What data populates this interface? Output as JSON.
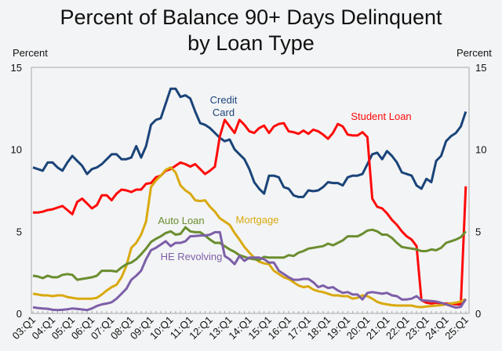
{
  "chart_data": {
    "type": "line",
    "title": "Percent of Balance 90+ Days Delinquent by Loan Type",
    "title_lines": [
      "Percent of Balance 90+ Days Delinquent",
      "by Loan Type"
    ],
    "ylabel_left": "Percent",
    "ylabel_right": "Percent",
    "ylim": [
      0,
      15
    ],
    "yticks": [
      0,
      5,
      10,
      15
    ],
    "xtick_labels": [
      "03:Q1",
      "04:Q1",
      "05:Q1",
      "06:Q1",
      "07:Q1",
      "08:Q1",
      "09:Q1",
      "10:Q1",
      "11:Q1",
      "12:Q1",
      "13:Q1",
      "14:Q1",
      "15:Q1",
      "16:Q1",
      "17:Q1",
      "18:Q1",
      "19:Q1",
      "20:Q1",
      "21:Q1",
      "22:Q1",
      "23:Q1",
      "24:Q1",
      "25:Q1"
    ],
    "x_range": [
      "2003:Q1",
      "2025:Q1"
    ],
    "x_frequency": "quarterly",
    "grid": false,
    "legend": "inline labels",
    "series": [
      {
        "name": "Credit Card",
        "label_lines": [
          "Credit",
          "Card"
        ],
        "color": "#1a4479",
        "values": [
          8.9,
          8.8,
          8.7,
          9.2,
          9.2,
          8.9,
          8.7,
          9.2,
          9.6,
          9.3,
          9.0,
          8.5,
          8.8,
          8.9,
          9.1,
          9.4,
          9.7,
          9.7,
          9.4,
          9.4,
          9.5,
          10.2,
          9.5,
          10.2,
          11.5,
          11.8,
          11.9,
          12.8,
          13.7,
          13.7,
          13.2,
          13.3,
          13.1,
          12.3,
          11.6,
          11.5,
          11.3,
          11.0,
          10.7,
          10.5,
          10.6,
          10.0,
          9.7,
          9.4,
          8.8,
          8.0,
          7.6,
          7.3,
          8.4,
          8.4,
          8.3,
          7.7,
          7.6,
          7.2,
          7.1,
          7.1,
          7.5,
          7.45,
          7.5,
          7.7,
          8.0,
          7.95,
          7.95,
          7.8,
          8.3,
          8.4,
          8.4,
          8.5,
          9.1,
          9.7,
          9.8,
          9.4,
          9.9,
          9.6,
          9.2,
          8.6,
          8.5,
          8.4,
          7.8,
          7.6,
          8.2,
          8.0,
          9.3,
          9.6,
          10.5,
          10.8,
          11.0,
          11.4,
          12.3
        ]
      },
      {
        "name": "Student Loan",
        "label_lines": [
          "Student Loan"
        ],
        "color": "#ff0a0a",
        "values": [
          6.15,
          6.15,
          6.2,
          6.3,
          6.35,
          6.45,
          6.55,
          6.3,
          6.05,
          6.8,
          7.0,
          6.7,
          6.4,
          6.6,
          7.2,
          7.2,
          6.9,
          7.3,
          7.55,
          7.5,
          7.4,
          7.55,
          7.55,
          7.9,
          7.95,
          8.3,
          8.4,
          8.7,
          8.8,
          9.0,
          9.2,
          9.1,
          8.95,
          9.1,
          8.8,
          8.5,
          8.7,
          8.95,
          10.8,
          11.8,
          11.4,
          11.0,
          11.8,
          11.5,
          11.1,
          11.0,
          11.3,
          11.45,
          11.0,
          11.4,
          11.55,
          11.6,
          11.1,
          11.05,
          10.95,
          11.15,
          10.95,
          11.2,
          11.1,
          10.9,
          10.65,
          11.0,
          11.55,
          11.4,
          10.9,
          10.85,
          10.85,
          11.05,
          10.75,
          7.0,
          6.5,
          6.4,
          6.1,
          5.7,
          5.4,
          5.0,
          4.7,
          4.5,
          4.1,
          0.8,
          0.65,
          0.6,
          0.65,
          0.6,
          0.6,
          0.6,
          0.55,
          0.55,
          7.75
        ]
      },
      {
        "name": "Mortgage",
        "label_lines": [
          "Mortgage"
        ],
        "color": "#d9a90e",
        "values": [
          1.2,
          1.15,
          1.1,
          1.1,
          1.05,
          1.1,
          1.1,
          1.0,
          0.95,
          0.9,
          0.9,
          0.9,
          0.9,
          0.95,
          1.15,
          1.4,
          1.6,
          1.75,
          2.2,
          2.9,
          4.0,
          4.3,
          4.8,
          5.6,
          7.7,
          8.1,
          8.4,
          8.75,
          8.9,
          8.6,
          7.8,
          7.5,
          7.3,
          6.9,
          6.85,
          6.9,
          6.5,
          6.2,
          5.8,
          5.6,
          5.4,
          4.9,
          4.5,
          4.05,
          3.7,
          3.4,
          3.15,
          3.05,
          3.0,
          2.6,
          2.4,
          2.2,
          2.1,
          1.9,
          1.7,
          1.6,
          1.65,
          1.45,
          1.35,
          1.3,
          1.2,
          1.1,
          1.1,
          1.05,
          1.05,
          0.9,
          0.95,
          1.1,
          1.05,
          0.9,
          0.7,
          0.6,
          0.55,
          0.5,
          0.48,
          0.48,
          0.48,
          0.48,
          0.4,
          0.38,
          0.42,
          0.45,
          0.48,
          0.5,
          0.55,
          0.6,
          0.65,
          0.72,
          0.87
        ]
      },
      {
        "name": "Auto Loan",
        "label_lines": [
          "Auto Loan"
        ],
        "color": "#6a8d2f",
        "values": [
          2.3,
          2.25,
          2.15,
          2.3,
          2.2,
          2.2,
          2.35,
          2.4,
          2.35,
          2.05,
          2.1,
          2.15,
          2.2,
          2.3,
          2.6,
          2.6,
          2.6,
          2.55,
          2.8,
          3.0,
          3.1,
          3.3,
          3.6,
          3.95,
          4.35,
          4.55,
          4.7,
          4.9,
          5.0,
          4.8,
          4.85,
          5.25,
          5.0,
          4.95,
          4.95,
          4.75,
          4.5,
          4.3,
          4.3,
          4.1,
          3.9,
          3.75,
          3.55,
          3.45,
          3.35,
          3.3,
          3.25,
          3.45,
          3.4,
          3.4,
          3.4,
          3.4,
          3.55,
          3.5,
          3.7,
          3.8,
          3.95,
          4.0,
          4.05,
          4.1,
          4.25,
          4.15,
          4.3,
          4.45,
          4.7,
          4.7,
          4.7,
          4.85,
          5.05,
          5.1,
          5.0,
          4.8,
          4.8,
          4.6,
          4.3,
          4.05,
          4.0,
          3.95,
          3.9,
          3.8,
          3.8,
          3.9,
          3.85,
          4.0,
          4.3,
          4.4,
          4.5,
          4.65,
          5.0
        ]
      },
      {
        "name": "HE Revolving",
        "label_lines": [
          "HE Revolving"
        ],
        "color": "#7d5fa8",
        "values": [
          0.37,
          0.33,
          0.3,
          0.28,
          0.22,
          0.2,
          0.22,
          0.25,
          0.3,
          0.27,
          0.24,
          0.2,
          0.3,
          0.45,
          0.55,
          0.6,
          0.68,
          0.9,
          1.2,
          1.5,
          2.05,
          2.3,
          2.6,
          3.3,
          3.85,
          4.0,
          4.2,
          4.4,
          4.1,
          4.3,
          4.3,
          4.4,
          4.7,
          4.72,
          4.75,
          4.75,
          4.8,
          4.95,
          4.95,
          3.5,
          3.3,
          3.0,
          3.5,
          3.2,
          3.4,
          3.4,
          3.4,
          3.3,
          3.1,
          3.1,
          2.6,
          2.4,
          2.2,
          2.05,
          2.05,
          2.1,
          2.1,
          1.9,
          1.6,
          1.7,
          1.55,
          1.6,
          1.4,
          1.25,
          1.3,
          1.15,
          1.15,
          0.85,
          1.25,
          1.3,
          1.25,
          1.2,
          1.25,
          1.1,
          1.05,
          0.85,
          0.85,
          0.9,
          1.05,
          0.8,
          0.78,
          0.75,
          0.72,
          0.65,
          0.55,
          0.45,
          0.35,
          0.4,
          0.87
        ]
      }
    ]
  }
}
